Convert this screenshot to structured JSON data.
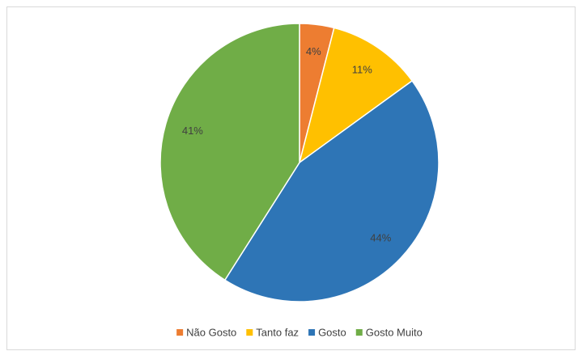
{
  "chart_data": {
    "type": "pie",
    "categories": [
      "Não Gosto",
      "Tanto faz",
      "Gosto",
      "Gosto Muito"
    ],
    "values": [
      4,
      11,
      44,
      41
    ],
    "value_labels": [
      "4%",
      "11%",
      "44%",
      "41%"
    ],
    "colors": [
      "#ed7d31",
      "#ffc000",
      "#2e75b6",
      "#70ad47"
    ],
    "legend": "bottom"
  }
}
